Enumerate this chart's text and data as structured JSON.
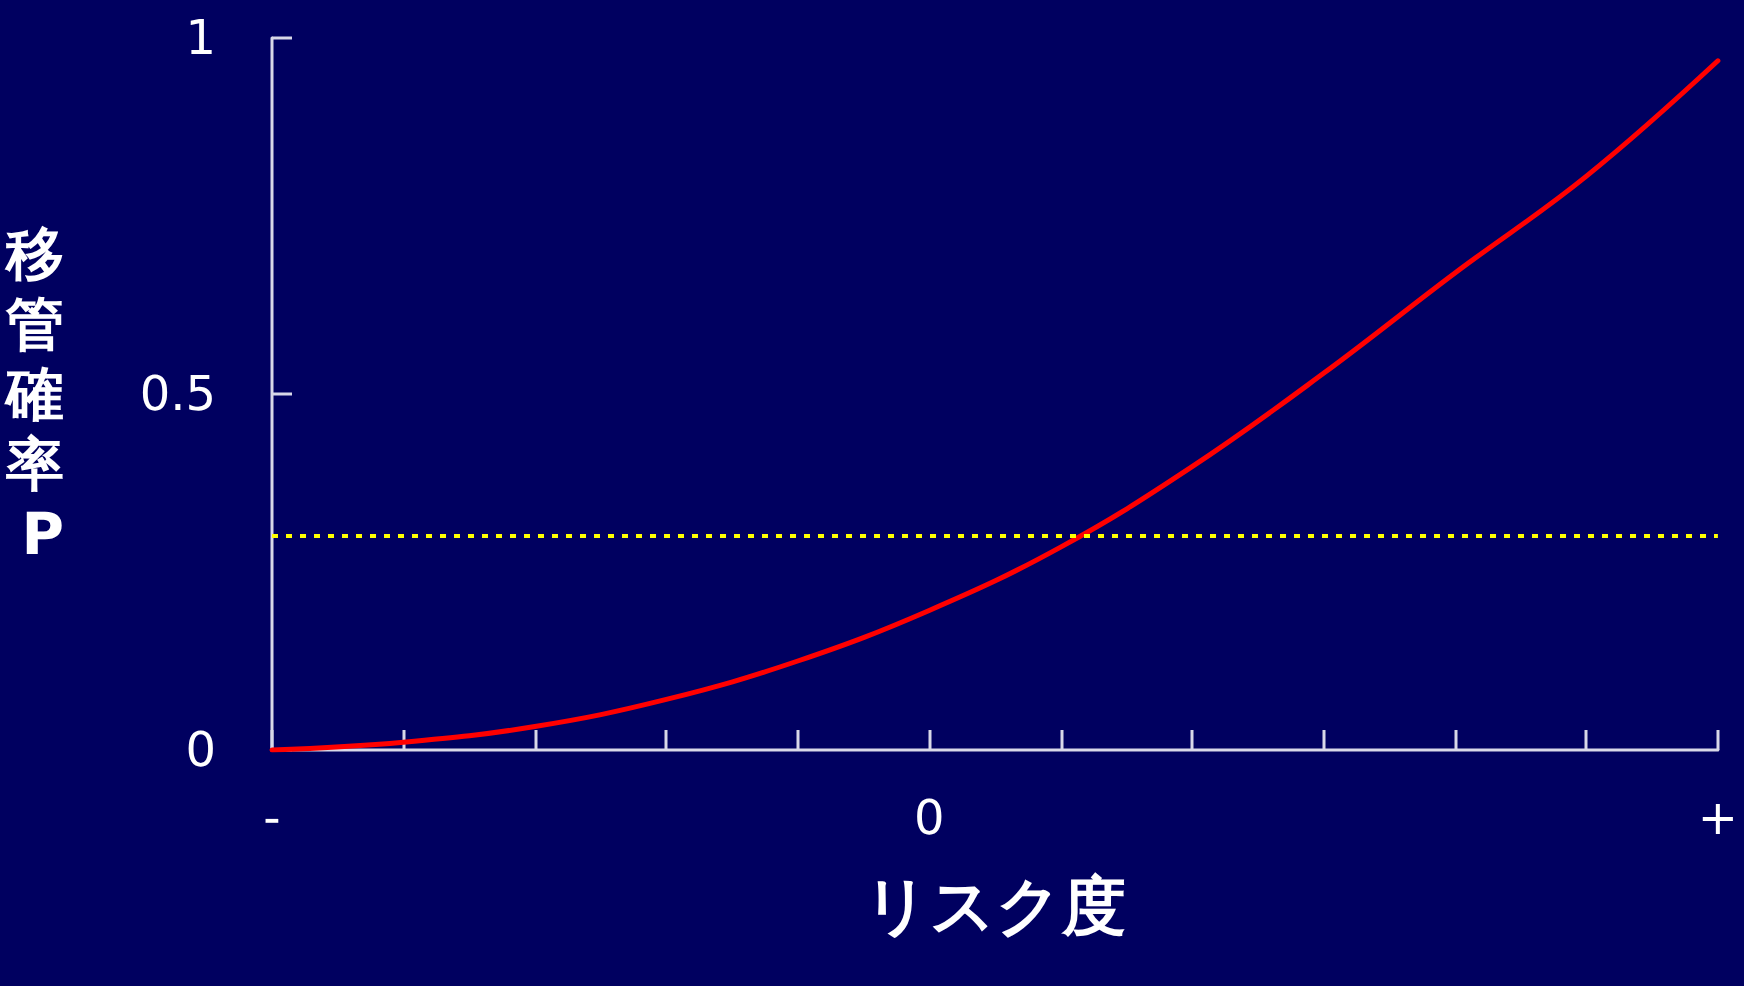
{
  "chart_data": {
    "type": "line",
    "xlabel": "リスク度",
    "ylabel": "移管確率P",
    "categories": [
      "-",
      null,
      null,
      null,
      null,
      "0",
      null,
      null,
      null,
      null,
      null,
      "+"
    ],
    "series": [
      {
        "color": "#ff0000",
        "values": [
          0,
          0.011,
          0.033,
          0.071,
          0.125,
          0.196,
          0.285,
          0.398,
          0.529,
          0.67,
          0.806,
          0.968
        ]
      }
    ],
    "ylim": [
      0,
      1
    ],
    "yticks": [
      0,
      0.5,
      1
    ],
    "ref_lines": [
      {
        "axis": "y",
        "value": 0.3,
        "color": "#ffff00",
        "line_style": "dotted"
      }
    ],
    "grid": false,
    "marker": "none",
    "line_style": "solid"
  }
}
